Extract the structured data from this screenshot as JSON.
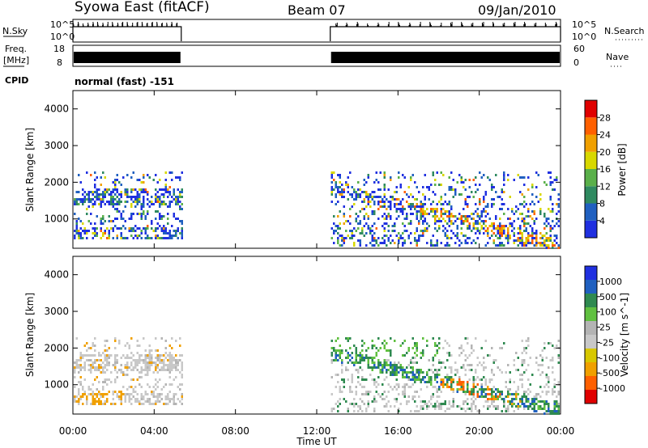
{
  "header": {
    "station": "Syowa East (fitACF)",
    "beam": "Beam 07",
    "date": "09/Jan/2010"
  },
  "panels": {
    "nsky_label": "N.Sky",
    "nsearch_label": "N.Search",
    "nsky_ticks": [
      "10^5",
      "10^0"
    ],
    "nsearch_ticks": [
      "10^5",
      "10^0"
    ],
    "freq_label_top": "Freq.",
    "freq_label_bottom": "[MHz]",
    "freq_ticks": [
      "18",
      "8"
    ],
    "nave_label": "Nave",
    "nave_ticks": [
      "60",
      "0"
    ],
    "cpid_label": "CPID",
    "cpid_text": "normal (fast) -151"
  },
  "colors": {
    "power_scale": [
      "#2030e0",
      "#2060c0",
      "#2f8a60",
      "#5ab04a",
      "#d8d800",
      "#f0a000",
      "#ff6000",
      "#e00000"
    ],
    "velocity_scale": [
      "#e00000",
      "#ff6000",
      "#f0a000",
      "#d8c800",
      "#c8c8c8",
      "#b4b4b4",
      "#60c040",
      "#2f8a50",
      "#2060c0",
      "#2030e0"
    ]
  },
  "chart_data": [
    {
      "type": "heatmap",
      "name": "power",
      "xlabel": "",
      "ylabel": "Slant Range [km]",
      "xlim": [
        "00:00",
        "24:00"
      ],
      "ylim": [
        200,
        4500
      ],
      "yticks": [
        "1000",
        "2000",
        "3000",
        "4000"
      ],
      "colorbar_label": "Power [dB]",
      "colorbar_ticks": [
        "4",
        "8",
        "12",
        "16",
        "20",
        "24",
        "28"
      ],
      "colorbar_range": [
        0,
        30
      ],
      "data_intervals_ut": [
        [
          "00:00",
          "05:20"
        ],
        [
          "12:40",
          "24:00"
        ]
      ]
    },
    {
      "type": "heatmap",
      "name": "velocity",
      "xlabel": "Time UT",
      "ylabel": "Slant Range [km]",
      "xlim": [
        "00:00",
        "24:00"
      ],
      "ylim": [
        200,
        4500
      ],
      "xticks": [
        "00:00",
        "04:00",
        "08:00",
        "12:00",
        "16:00",
        "20:00",
        "00:00"
      ],
      "yticks": [
        "1000",
        "2000",
        "3000",
        "4000"
      ],
      "colorbar_label": "Velocity [m s^-1]",
      "colorbar_ticks": [
        "1000",
        "500",
        "100",
        "25",
        "-25",
        "-100",
        "-500",
        "-1000"
      ],
      "data_intervals_ut": [
        [
          "00:00",
          "05:20"
        ],
        [
          "12:40",
          "24:00"
        ]
      ]
    }
  ]
}
